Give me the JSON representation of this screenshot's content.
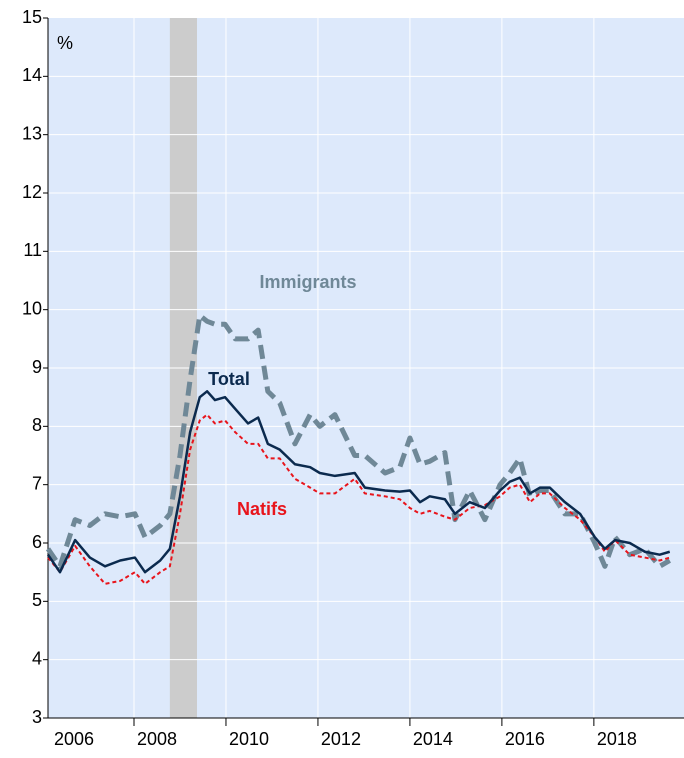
{
  "chart_data": {
    "type": "line",
    "y_unit": "%",
    "annotations": [
      "Immigrants",
      "Total",
      "Natifs"
    ],
    "x": [
      2006.13,
      2006.39,
      2006.72,
      2007.04,
      2007.37,
      2007.7,
      2008.02,
      2008.24,
      2008.57,
      2008.78,
      2009.0,
      2009.22,
      2009.43,
      2009.59,
      2009.76,
      2009.98,
      2010.2,
      2010.48,
      2010.7,
      2010.91,
      2011.17,
      2011.5,
      2011.83,
      2012.04,
      2012.37,
      2012.8,
      2013.02,
      2013.46,
      2013.78,
      2014.0,
      2014.22,
      2014.43,
      2014.76,
      2014.98,
      2015.3,
      2015.63,
      2015.96,
      2016.17,
      2016.39,
      2016.61,
      2016.83,
      2017.04,
      2017.37,
      2017.7,
      2018.02,
      2018.24,
      2018.46,
      2018.78,
      2019.11,
      2019.43,
      2019.65
    ],
    "series": [
      {
        "name": "Immigrants",
        "color": "#6f8897",
        "dash": "dashed",
        "values": [
          5.9,
          5.6,
          6.4,
          6.3,
          6.5,
          6.45,
          6.5,
          6.1,
          6.3,
          6.5,
          7.5,
          8.8,
          9.9,
          9.8,
          9.75,
          9.75,
          9.5,
          9.5,
          9.65,
          8.6,
          8.4,
          7.7,
          8.2,
          8.0,
          8.2,
          7.5,
          7.5,
          7.2,
          7.3,
          7.8,
          7.35,
          7.4,
          7.55,
          6.4,
          6.9,
          6.4,
          7.0,
          7.2,
          7.45,
          6.8,
          6.9,
          6.9,
          6.5,
          6.5,
          6.0,
          5.6,
          6.1,
          5.8,
          5.9,
          5.6,
          5.7
        ]
      },
      {
        "name": "Total",
        "color": "#0b2a4e",
        "dash": "solid",
        "values": [
          5.8,
          5.5,
          6.05,
          5.75,
          5.6,
          5.7,
          5.75,
          5.5,
          5.7,
          5.9,
          6.8,
          7.9,
          8.5,
          8.6,
          8.45,
          8.5,
          8.3,
          8.05,
          8.15,
          7.7,
          7.6,
          7.35,
          7.3,
          7.2,
          7.15,
          7.2,
          6.95,
          6.9,
          6.88,
          6.9,
          6.7,
          6.8,
          6.75,
          6.5,
          6.7,
          6.6,
          6.9,
          7.05,
          7.12,
          6.85,
          6.95,
          6.95,
          6.7,
          6.5,
          6.1,
          5.9,
          6.05,
          6.0,
          5.85,
          5.8,
          5.85
        ]
      },
      {
        "name": "Natifs",
        "color": "#e8141b",
        "dash": "dotted",
        "values": [
          5.75,
          5.5,
          5.95,
          5.6,
          5.3,
          5.35,
          5.5,
          5.3,
          5.5,
          5.6,
          6.5,
          7.6,
          8.1,
          8.2,
          8.05,
          8.1,
          7.9,
          7.7,
          7.7,
          7.45,
          7.45,
          7.1,
          6.95,
          6.85,
          6.85,
          7.1,
          6.85,
          6.8,
          6.75,
          6.6,
          6.5,
          6.55,
          6.45,
          6.4,
          6.6,
          6.65,
          6.8,
          6.95,
          7.0,
          6.7,
          6.85,
          6.85,
          6.6,
          6.4,
          6.1,
          5.85,
          6.05,
          5.8,
          5.75,
          5.7,
          5.75
        ]
      }
    ],
    "recession": [
      2008.78,
      2009.37
    ],
    "xlim": [
      2006.13,
      2019.96
    ],
    "xticks": [
      2006,
      2008,
      2010,
      2012,
      2014,
      2016,
      2018
    ],
    "ylim": [
      3,
      15
    ],
    "yticks": [
      3,
      4,
      5,
      6,
      7,
      8,
      9,
      10,
      11,
      12,
      13,
      14,
      15
    ],
    "grid": true,
    "background": "#dde9fb"
  }
}
